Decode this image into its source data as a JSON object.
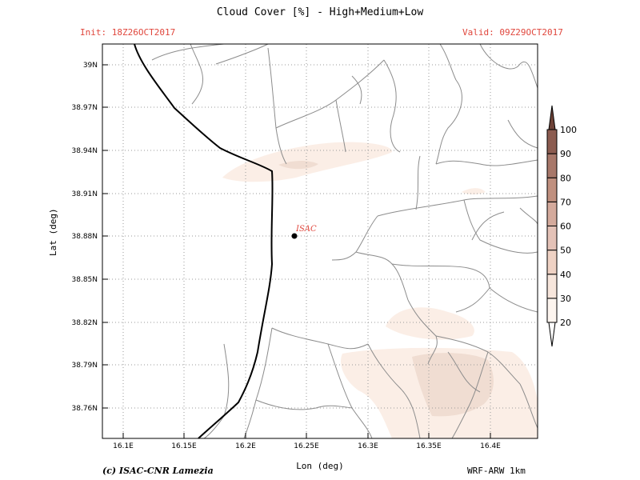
{
  "header": {
    "title": "Cloud Cover [%] - High+Medium+Low",
    "init": "Init: 18Z26OCT2017",
    "valid": "Valid: 09Z29OCT2017"
  },
  "axes": {
    "xlabel": "Lon (deg)",
    "ylabel": "Lat (deg)",
    "xticks": [
      "16.1E",
      "16.15E",
      "16.2E",
      "16.25E",
      "16.3E",
      "16.35E",
      "16.4E"
    ],
    "yticks": [
      "39N",
      "38.97N",
      "38.94N",
      "38.91N",
      "38.88N",
      "38.85N",
      "38.82N",
      "38.79N",
      "38.76N"
    ]
  },
  "station": {
    "label": "ISAC",
    "lon": 16.24,
    "lat": 38.88
  },
  "colorbar": {
    "levels": [
      20,
      30,
      40,
      50,
      60,
      70,
      80,
      90,
      100
    ],
    "colors": [
      "#fdf5ef",
      "#f7e6dc",
      "#efd2c4",
      "#e4c2b7",
      "#d4aa9c",
      "#c0907f",
      "#a8786a",
      "#8c5c50",
      "#6e4338"
    ]
  },
  "footer": {
    "credit": "(c) ISAC-CNR Lamezia",
    "model": "WRF-ARW 1km"
  }
}
